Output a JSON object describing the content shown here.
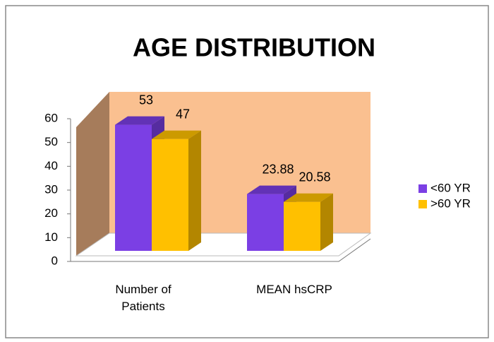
{
  "chart_data": {
    "type": "bar3d",
    "title": "AGE DISTRIBUTION",
    "categories": [
      "Number of Patients",
      "MEAN hsCRP"
    ],
    "series": [
      {
        "name": "<60 YR",
        "color": "#7b3fe4",
        "values": [
          53,
          23.88
        ]
      },
      {
        "name": ">60 YR",
        "color": "#ffc000",
        "values": [
          47,
          20.58
        ]
      }
    ],
    "ylim": [
      0,
      60
    ],
    "yticks": [
      0,
      10,
      20,
      30,
      40,
      50,
      60
    ],
    "legend": "right"
  }
}
